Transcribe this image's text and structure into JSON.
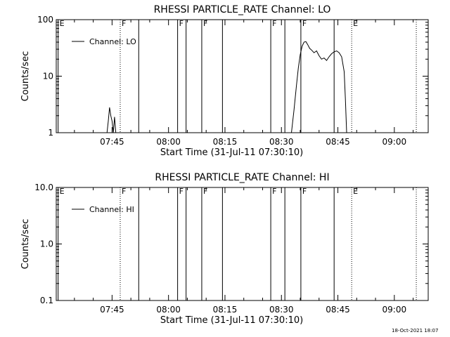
{
  "chart_data": [
    {
      "type": "line",
      "title": "RHESSI PARTICLE_RATE Channel: LO",
      "xlabel": "Start Time (31-Jul-11 07:30:10)",
      "ylabel": "Counts/sec",
      "yscale": "log",
      "ylim": [
        1,
        100
      ],
      "xlim_minutes_from_0730": [
        0.17,
        99
      ],
      "x_ticks": [
        "07:45",
        "08:00",
        "08:15",
        "08:30",
        "08:45",
        "09:00"
      ],
      "y_ticks": [
        "1",
        "10",
        "100"
      ],
      "legend": [
        "Channel: LO"
      ],
      "legend_position": "top-left",
      "markers": [
        {
          "time": "07:30:40",
          "label": "E",
          "style": "solid"
        },
        {
          "time": "07:47:10",
          "label": "F",
          "style": "dotted"
        },
        {
          "time": "07:52:05",
          "label": "",
          "style": "solid"
        },
        {
          "time": "08:02:25",
          "label": "F",
          "style": "solid"
        },
        {
          "time": "08:04:40",
          "label": "",
          "style": "solid"
        },
        {
          "time": "08:08:50",
          "label": "F",
          "style": "solid"
        },
        {
          "time": "08:14:20",
          "label": "",
          "style": "solid"
        },
        {
          "time": "08:27:10",
          "label": "F",
          "style": "solid"
        },
        {
          "time": "08:30:55",
          "label": "",
          "style": "solid"
        },
        {
          "time": "08:35:10",
          "label": "F",
          "style": "solid"
        },
        {
          "time": "08:44:00",
          "label": "",
          "style": "solid"
        },
        {
          "time": "08:48:40",
          "label": "E",
          "style": "dotted"
        },
        {
          "time": "09:05:50",
          "label": "",
          "style": "dotted"
        }
      ],
      "series": [
        {
          "name": "Channel: LO",
          "points": [
            {
              "t": "07:43:40",
              "v": 1.0
            },
            {
              "t": "07:44:00",
              "v": 1.6
            },
            {
              "t": "07:44:20",
              "v": 2.8
            },
            {
              "t": "07:44:40",
              "v": 2.0
            },
            {
              "t": "07:45:00",
              "v": 1.6
            },
            {
              "t": "07:45:20",
              "v": 1.0
            },
            {
              "t": "07:45:40",
              "v": 1.9
            },
            {
              "t": "07:46:00",
              "v": 1.0
            },
            {
              "t": "08:32:40",
              "v": 1.0
            },
            {
              "t": "08:33:20",
              "v": 2.5
            },
            {
              "t": "08:34:00",
              "v": 7.0
            },
            {
              "t": "08:34:30",
              "v": 14
            },
            {
              "t": "08:35:00",
              "v": 24
            },
            {
              "t": "08:35:30",
              "v": 34
            },
            {
              "t": "08:36:00",
              "v": 40
            },
            {
              "t": "08:36:30",
              "v": 41
            },
            {
              "t": "08:37:00",
              "v": 36
            },
            {
              "t": "08:37:30",
              "v": 31
            },
            {
              "t": "08:38:00",
              "v": 29
            },
            {
              "t": "08:38:40",
              "v": 26
            },
            {
              "t": "08:39:20",
              "v": 28
            },
            {
              "t": "08:40:00",
              "v": 23
            },
            {
              "t": "08:40:40",
              "v": 20
            },
            {
              "t": "08:41:20",
              "v": 21
            },
            {
              "t": "08:42:00",
              "v": 19
            },
            {
              "t": "08:42:40",
              "v": 22
            },
            {
              "t": "08:43:20",
              "v": 25
            },
            {
              "t": "08:44:00",
              "v": 27
            },
            {
              "t": "08:44:40",
              "v": 28
            },
            {
              "t": "08:45:20",
              "v": 26
            },
            {
              "t": "08:46:00",
              "v": 22
            },
            {
              "t": "08:46:40",
              "v": 12
            },
            {
              "t": "08:47:00",
              "v": 4
            },
            {
              "t": "08:47:20",
              "v": 1.0
            }
          ]
        }
      ]
    },
    {
      "type": "line",
      "title": "RHESSI PARTICLE_RATE Channel: HI",
      "xlabel": "Start Time (31-Jul-11 07:30:10)",
      "ylabel": "Counts/sec",
      "yscale": "log",
      "ylim": [
        0.1,
        10
      ],
      "xlim_minutes_from_0730": [
        0.17,
        99
      ],
      "x_ticks": [
        "07:45",
        "08:00",
        "08:15",
        "08:30",
        "08:45",
        "09:00"
      ],
      "y_ticks": [
        "0.1",
        "1.0",
        "10.0"
      ],
      "legend": [
        "Channel: HI"
      ],
      "legend_position": "top-left",
      "markers": [
        {
          "time": "07:30:40",
          "label": "E",
          "style": "solid"
        },
        {
          "time": "07:47:10",
          "label": "F",
          "style": "dotted"
        },
        {
          "time": "07:52:05",
          "label": "",
          "style": "solid"
        },
        {
          "time": "08:02:25",
          "label": "F",
          "style": "solid"
        },
        {
          "time": "08:04:40",
          "label": "",
          "style": "solid"
        },
        {
          "time": "08:08:50",
          "label": "F",
          "style": "solid"
        },
        {
          "time": "08:14:20",
          "label": "",
          "style": "solid"
        },
        {
          "time": "08:27:10",
          "label": "F",
          "style": "solid"
        },
        {
          "time": "08:30:55",
          "label": "",
          "style": "solid"
        },
        {
          "time": "08:35:10",
          "label": "F",
          "style": "solid"
        },
        {
          "time": "08:44:00",
          "label": "",
          "style": "solid"
        },
        {
          "time": "08:48:40",
          "label": "E",
          "style": "dotted"
        },
        {
          "time": "09:05:50",
          "label": "",
          "style": "dotted"
        }
      ],
      "series": [
        {
          "name": "Channel: HI",
          "points": []
        }
      ]
    }
  ],
  "footer": {
    "timestamp": "18-Oct-2021 18:07"
  }
}
